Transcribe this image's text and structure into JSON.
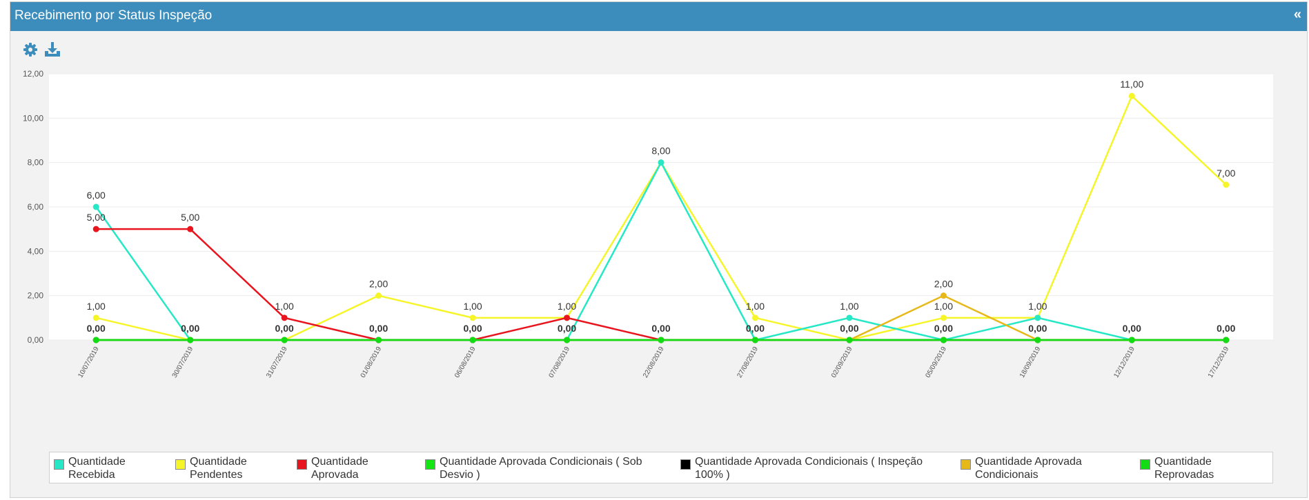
{
  "panel": {
    "title": "Recebimento por Status Inspeção",
    "collapse_label": "«"
  },
  "toolbar": {
    "settings_icon": "gear-icon",
    "download_icon": "download-icon",
    "color": "#3c8dbc"
  },
  "chart_data": {
    "type": "line",
    "title": "",
    "xlabel": "",
    "ylabel": "",
    "ylim": [
      0,
      12
    ],
    "yticks": [
      "0,00",
      "2,00",
      "4,00",
      "6,00",
      "8,00",
      "10,00",
      "12,00"
    ],
    "grid": true,
    "legend_position": "bottom",
    "categories": [
      "10/07/2019",
      "30/07/2019",
      "31/07/2019",
      "01/08/2019",
      "06/08/2019",
      "07/08/2019",
      "22/08/2019",
      "27/08/2019",
      "02/09/2019",
      "05/09/2019",
      "18/09/2019",
      "12/12/2019",
      "17/12/2019"
    ],
    "series": [
      {
        "name": "Quantidade Recebida",
        "color": "#26e8c6",
        "values": [
          6,
          0,
          0,
          0,
          0,
          0,
          8,
          0,
          1,
          0,
          1,
          0,
          0
        ]
      },
      {
        "name": "Quantidade Pendentes",
        "color": "#f5f52a",
        "values": [
          1,
          0,
          0,
          2,
          1,
          1,
          8,
          1,
          0,
          1,
          1,
          11,
          7
        ]
      },
      {
        "name": "Quantidade Aprovada",
        "color": "#e8141e",
        "values": [
          5,
          5,
          1,
          0,
          0,
          1,
          0,
          0,
          0,
          0,
          0,
          0,
          0
        ]
      },
      {
        "name": "Quantidade Aprovada Condicionais ( Sob Desvio )",
        "color": "#14e614",
        "values": [
          0,
          0,
          0,
          0,
          0,
          0,
          0,
          0,
          0,
          0,
          0,
          0,
          0
        ]
      },
      {
        "name": "Quantidade Aprovada Condicionais ( Inspeção 100% )",
        "color": "#000000",
        "values": [
          0,
          0,
          0,
          0,
          0,
          0,
          0,
          0,
          0,
          0,
          0,
          0,
          0
        ]
      },
      {
        "name": "Quantidade Aprovada Condicionais",
        "color": "#e6b818",
        "values": [
          0,
          0,
          0,
          0,
          0,
          0,
          0,
          0,
          0,
          2,
          0,
          0,
          0
        ]
      },
      {
        "name": "Quantidade Reprovadas",
        "color": "#14dc14",
        "values": [
          0,
          0,
          0,
          0,
          0,
          0,
          0,
          0,
          0,
          0,
          0,
          0,
          0
        ]
      }
    ],
    "data_labels": [
      {
        "x": "10/07/2019",
        "text": "6,00",
        "bold": false
      },
      {
        "x": "10/07/2019",
        "text": "5,00",
        "bold": false
      },
      {
        "x": "10/07/2019",
        "text": "1,00",
        "bold": false
      },
      {
        "x": "10/07/2019",
        "text": "0,00",
        "bold": true
      },
      {
        "x": "30/07/2019",
        "text": "5,00",
        "bold": false
      },
      {
        "x": "30/07/2019",
        "text": "0,00",
        "bold": true
      },
      {
        "x": "31/07/2019",
        "text": "1,00",
        "bold": false
      },
      {
        "x": "31/07/2019",
        "text": "0,00",
        "bold": true
      },
      {
        "x": "01/08/2019",
        "text": "2,00",
        "bold": false
      },
      {
        "x": "01/08/2019",
        "text": "0,00",
        "bold": true
      },
      {
        "x": "06/08/2019",
        "text": "1,00",
        "bold": false
      },
      {
        "x": "06/08/2019",
        "text": "0,00",
        "bold": true
      },
      {
        "x": "07/08/2019",
        "text": "1,00",
        "bold": false
      },
      {
        "x": "07/08/2019",
        "text": "0,00",
        "bold": true
      },
      {
        "x": "22/08/2019",
        "text": "8,00",
        "bold": false
      },
      {
        "x": "22/08/2019",
        "text": "0,00",
        "bold": true
      },
      {
        "x": "27/08/2019",
        "text": "1,00",
        "bold": false
      },
      {
        "x": "27/08/2019",
        "text": "0,00",
        "bold": true
      },
      {
        "x": "02/09/2019",
        "text": "1,00",
        "bold": false
      },
      {
        "x": "02/09/2019",
        "text": "0,00",
        "bold": true
      },
      {
        "x": "05/09/2019",
        "text": "2,00",
        "bold": false
      },
      {
        "x": "05/09/2019",
        "text": "1,00",
        "bold": false
      },
      {
        "x": "05/09/2019",
        "text": "0,00",
        "bold": true
      },
      {
        "x": "18/09/2019",
        "text": "1,00",
        "bold": false
      },
      {
        "x": "18/09/2019",
        "text": "0,00",
        "bold": true
      },
      {
        "x": "12/12/2019",
        "text": "11,00",
        "bold": false
      },
      {
        "x": "12/12/2019",
        "text": "0,00",
        "bold": true
      },
      {
        "x": "17/12/2019",
        "text": "7,00",
        "bold": false
      },
      {
        "x": "17/12/2019",
        "text": "0,00",
        "bold": true
      }
    ]
  },
  "legend": {
    "items": [
      {
        "line1": "Quantidade",
        "line2": "Recebida",
        "color": "#26e8c6"
      },
      {
        "line1": "Quantidade",
        "line2": "Pendentes",
        "color": "#f5f52a"
      },
      {
        "line1": "Quantidade",
        "line2": "Aprovada",
        "color": "#e8141e"
      },
      {
        "line1": "Quantidade Aprovada Condicionais ( Sob",
        "line2": "Desvio )",
        "color": "#14e614"
      },
      {
        "line1": "Quantidade Aprovada Condicionais ( Inspeção",
        "line2": "100% )",
        "color": "#000000"
      },
      {
        "line1": "Quantidade Aprovada",
        "line2": "Condicionais",
        "color": "#e6b818"
      },
      {
        "line1": "Quantidade",
        "line2": "Reprovadas",
        "color": "#14dc14"
      }
    ]
  }
}
